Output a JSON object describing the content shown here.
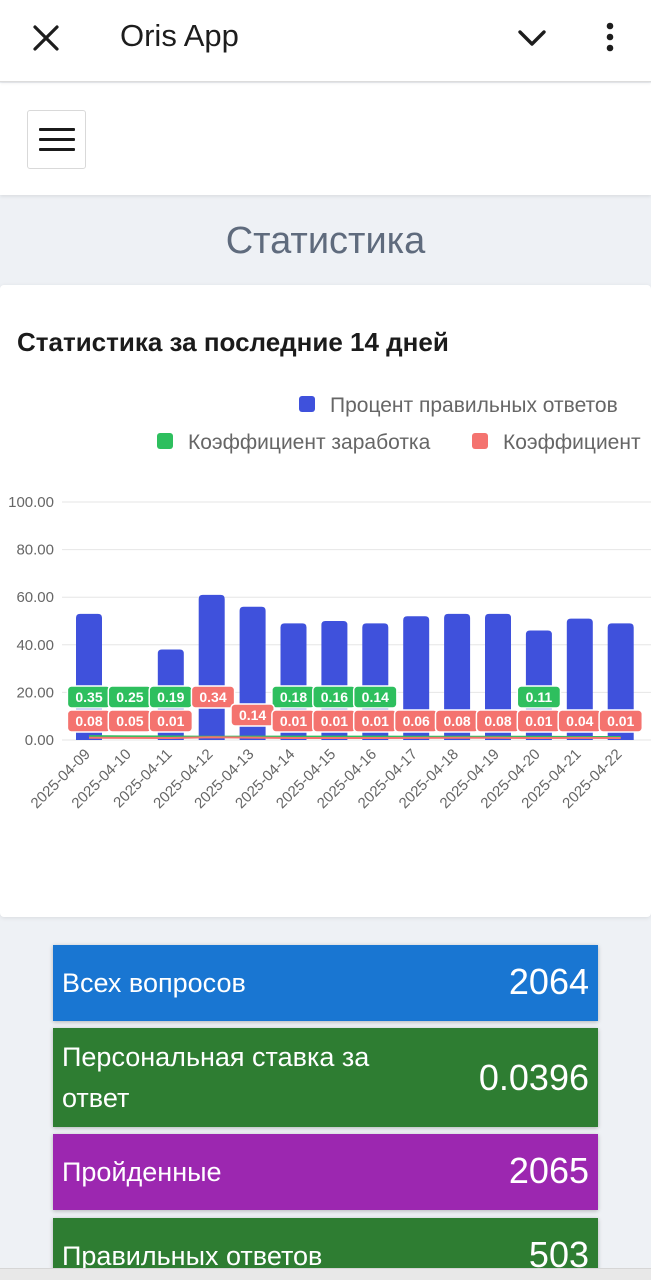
{
  "app": {
    "title": "Oris App"
  },
  "page": {
    "heading": "Статистика"
  },
  "chart_card": {
    "title": "Статистика за последние 14 дней"
  },
  "chart_data": {
    "type": "bar",
    "title": "Статистика за последние 14 дней",
    "categories": [
      "2025-04-09",
      "2025-04-10",
      "2025-04-11",
      "2025-04-12",
      "2025-04-13",
      "2025-04-14",
      "2025-04-15",
      "2025-04-16",
      "2025-04-17",
      "2025-04-18",
      "2025-04-19",
      "2025-04-20",
      "2025-04-21",
      "2025-04-22"
    ],
    "y_ticks": [
      "100.00",
      "80.00",
      "60.00",
      "40.00",
      "20.00",
      "0.00"
    ],
    "ylim": [
      0,
      100
    ],
    "legend_position": "top-right",
    "series": [
      {
        "name": "Процент правильных ответов",
        "type": "bar",
        "color": "#3f51dc",
        "values": [
          53,
          0,
          38,
          61,
          56,
          49,
          50,
          49,
          52,
          53,
          53,
          46,
          51,
          49
        ]
      },
      {
        "name": "Коэффициент заработка",
        "type": "line",
        "color": "#2ebf5e",
        "values": [
          0.35,
          0.25,
          0.19,
          0.13,
          0.16,
          0.18,
          0.16,
          0.14,
          0.12,
          0.11,
          0.11,
          0.11,
          0.01,
          0.01
        ],
        "labels": [
          "0.35",
          "0.25",
          "0.19",
          "",
          "",
          "0.18",
          "0.16",
          "0.14",
          "",
          "",
          "",
          "0.11",
          "",
          ""
        ]
      },
      {
        "name": "Коэффициент",
        "type": "line",
        "color": "#f4736f",
        "values": [
          0.08,
          0.05,
          0.01,
          0.34,
          0.14,
          0.01,
          0.01,
          0.01,
          0.06,
          0.08,
          0.08,
          0.01,
          0.04,
          0.01
        ],
        "labels": [
          "0.08",
          "0.05",
          "0.01",
          "0.34",
          "0.14",
          "0.01",
          "0.01",
          "0.01",
          "0.06",
          "0.08",
          "0.08",
          "0.01",
          "0.04",
          "0.01"
        ]
      }
    ]
  },
  "stats": [
    {
      "label": "Всех вопросов",
      "value": "2064",
      "color": "#1976d2"
    },
    {
      "label": "Персональная ставка за ответ",
      "value": "0.0396",
      "color": "#2e7d32"
    },
    {
      "label": "Пройденные",
      "value": "2065",
      "color": "#9c27b0"
    },
    {
      "label": "Правильных ответов",
      "value": "503",
      "color": "#2e7d32"
    }
  ]
}
